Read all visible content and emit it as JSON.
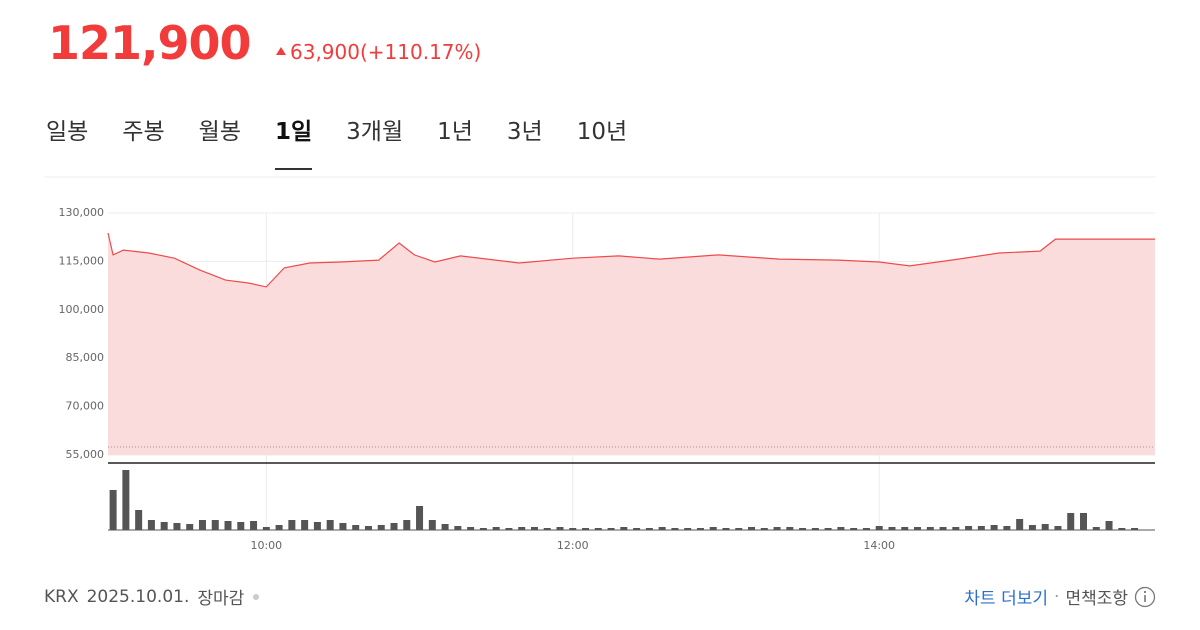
{
  "header": {
    "price": "121,900",
    "change": "63,900(+110.17%)"
  },
  "tabs": [
    "일봉",
    "주봉",
    "월봉",
    "1일",
    "3개월",
    "1년",
    "3년",
    "10년"
  ],
  "active_tab": 3,
  "chart_data": {
    "type": "line",
    "color": "#f04a4a",
    "fill": "#fbdcdc",
    "x": [
      538,
      540,
      544,
      554,
      564,
      574,
      584,
      593,
      600,
      607,
      617,
      629,
      644,
      652,
      658,
      666,
      676,
      699,
      720,
      738,
      754,
      777,
      801,
      824,
      840,
      852,
      871,
      887,
      903,
      909,
      948
    ],
    "values": [
      123800,
      117000,
      118500,
      117600,
      116000,
      112300,
      109200,
      108300,
      107100,
      113000,
      114500,
      114800,
      115400,
      120700,
      117000,
      114800,
      116700,
      114500,
      116000,
      116700,
      115700,
      117000,
      115700,
      115400,
      114800,
      113600,
      115700,
      117600,
      118200,
      121900,
      121900
    ],
    "xlim": [
      538,
      948
    ],
    "xticks": [
      {
        "value": 600,
        "label": "10:00"
      },
      {
        "value": 720,
        "label": "12:00"
      },
      {
        "value": 840,
        "label": "14:00"
      }
    ],
    "ylim": [
      55000,
      130000
    ],
    "yticks": [
      {
        "value": 55000,
        "label": "55,000"
      },
      {
        "value": 70000,
        "label": "70,000"
      },
      {
        "value": 85000,
        "label": "85,000"
      },
      {
        "value": 100000,
        "label": "100,000"
      },
      {
        "value": 115000,
        "label": "115,000"
      },
      {
        "value": 130000,
        "label": "130,000"
      }
    ],
    "grid": true,
    "volume": {
      "color": "#555555",
      "y2lim": [
        0,
        60
      ],
      "x": [
        540,
        545,
        550,
        555,
        560,
        565,
        570,
        575,
        580,
        585,
        590,
        595,
        600,
        605,
        610,
        615,
        620,
        625,
        630,
        635,
        640,
        645,
        650,
        655,
        660,
        665,
        670,
        675,
        680,
        685,
        690,
        695,
        700,
        705,
        710,
        715,
        720,
        725,
        730,
        735,
        740,
        745,
        750,
        755,
        760,
        765,
        770,
        775,
        780,
        785,
        790,
        795,
        800,
        805,
        810,
        815,
        820,
        825,
        830,
        835,
        840,
        845,
        850,
        855,
        860,
        865,
        870,
        875,
        880,
        885,
        890,
        895,
        900,
        905,
        910,
        915,
        920,
        925,
        930,
        935,
        940
      ],
      "values": [
        40,
        60,
        20,
        10,
        8,
        7,
        6,
        10,
        10,
        9,
        8,
        9,
        3,
        5,
        10,
        10,
        8,
        10,
        7,
        5,
        4,
        5,
        7,
        10,
        24,
        10,
        6,
        4,
        3,
        2,
        3,
        2,
        3,
        3,
        2,
        3,
        2,
        2,
        2,
        2,
        3,
        2,
        2,
        3,
        2,
        2,
        2,
        3,
        2,
        2,
        3,
        2,
        3,
        3,
        2,
        2,
        2,
        3,
        2,
        2,
        4,
        3,
        3,
        3,
        3,
        3,
        3,
        4,
        4,
        5,
        4,
        11,
        5,
        6,
        4,
        17,
        17,
        3,
        9,
        2,
        2
      ]
    }
  },
  "footer": {
    "exchange": "KRX",
    "date": "2025.10.01.",
    "status": "장마감",
    "more": "차트 더보기",
    "separator": "·",
    "disclaimer": "면책조항"
  }
}
